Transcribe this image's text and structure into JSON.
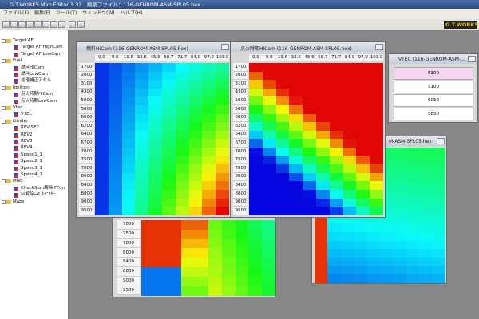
{
  "window": {
    "title": "G.T.WORKS Map Editor 3.32　編集ファイル：116-GENROM-ASM-SPL05.hex"
  },
  "menu": [
    "ファイル(F)",
    "編集(E)",
    "ツール(T)",
    "ウィンドウ(W)",
    "ヘルプ(H)"
  ],
  "logo": "G.T.WORKS",
  "tree": [
    {
      "label": "Target AF",
      "children": [
        "Target AF HighCam",
        "Target AF LowCam"
      ]
    },
    {
      "label": "Fuel",
      "children": [
        "燃料HiCam",
        "燃料LowCam",
        "加速補正アセル"
      ]
    },
    {
      "label": "Ignition",
      "children": [
        "点火時期HiCam",
        "点火時期LowCam"
      ]
    },
    {
      "label": "Vtec",
      "children": [
        "VTEC"
      ]
    },
    {
      "label": "Limiter",
      "children": [
        "REVISET",
        "REV2",
        "REV3",
        "REV4",
        "Speed1_1",
        "Speed2_1",
        "Speed3_1",
        "Speed4_1"
      ]
    },
    {
      "label": "Misc",
      "children": [
        "CheckSum解除 FFon",
        "ﾊｲ解除→1 ｷｬﾆｽﾀｰ"
      ]
    },
    {
      "label": "Maps",
      "children": []
    }
  ],
  "maps": [
    {
      "title": "燃料HiCam (116-GENROM-ASM-SPL05.hex)",
      "columns": [
        "0.0",
        "9.0",
        "19.6",
        "32.6",
        "45.6",
        "58.7",
        "71.7",
        "84.0",
        "97.0",
        "103.9"
      ],
      "rows": [
        "1700",
        "2000",
        "3100",
        "4300",
        "5000",
        "5600",
        "6000",
        "6200",
        "6400",
        "6700",
        "7000",
        "7500",
        "7800",
        "8000",
        "8400",
        "8800",
        "9000",
        "9500"
      ]
    },
    {
      "title": "点火時期HiCam (116-GENROM-ASM-SPL05.hex)",
      "columns": [
        "0.0",
        "9.0",
        "19.6",
        "32.6",
        "45.6",
        "58.7",
        "71.7",
        "84.0",
        "97.0",
        "103.9"
      ],
      "rows": [
        "1700",
        "2000",
        "3100",
        "4300",
        "5000",
        "5600",
        "6000",
        "6200",
        "6400",
        "6700",
        "7000",
        "7500",
        "7800",
        "8000",
        "8400",
        "8800",
        "9000",
        "9500"
      ]
    }
  ],
  "vtec": {
    "title": "VTEC (116-GENROM-ASM-...",
    "rows": [
      "5300",
      "5100",
      "6050",
      "5850"
    ]
  },
  "back_maps": [
    {
      "rows": [
        "7000",
        "7500",
        "7800",
        "8000",
        "8400",
        "8800",
        "9000",
        "9500"
      ]
    },
    {
      "title": "M-ASM-SPL05.hex"
    }
  ]
}
